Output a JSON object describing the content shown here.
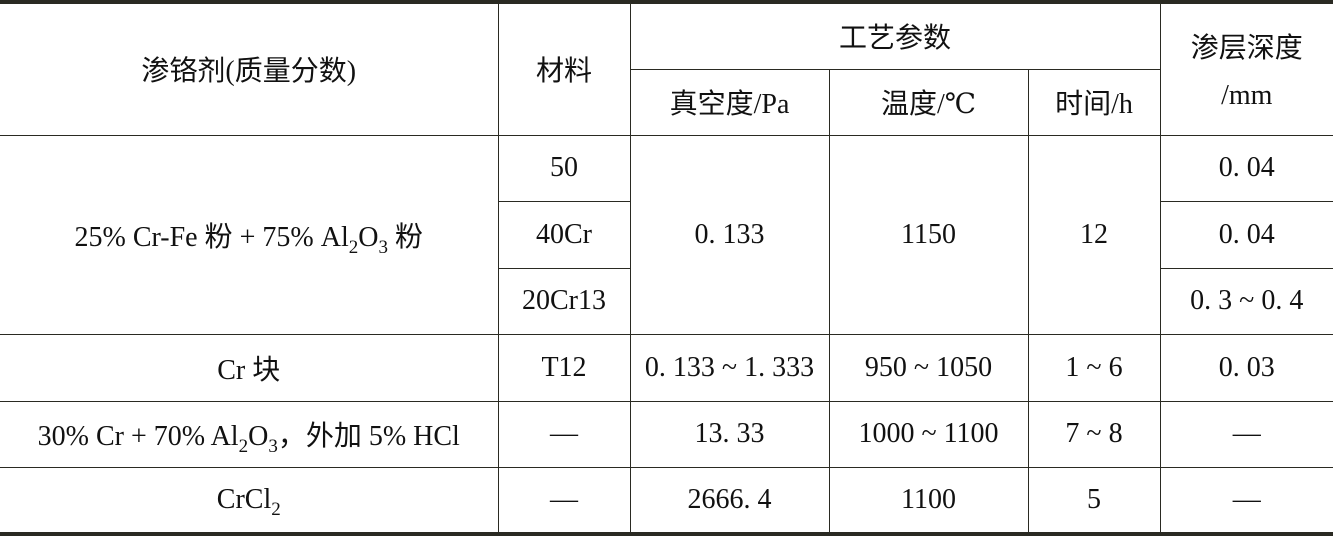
{
  "header": {
    "agent": "渗铬剂(质量分数)",
    "material": "材料",
    "process": "工艺参数",
    "vacuum": "真空度/Pa",
    "temperature": "温度/℃",
    "time": "时间/h",
    "depth_line1": "渗层深度",
    "depth_line2": "/mm"
  },
  "rows": [
    {
      "agent_parts": [
        "25% Cr-Fe 粉 + 75% Al",
        "2",
        "O",
        "3",
        " 粉"
      ],
      "materials": [
        "50",
        "40Cr",
        "20Cr13"
      ],
      "vacuum": "0. 133",
      "temperature": "1150",
      "time": "12",
      "depths": [
        "0. 04",
        "0. 04",
        "0. 3 ~ 0. 4"
      ]
    },
    {
      "agent_parts": [
        "Cr 块"
      ],
      "material": "T12",
      "vacuum": "0. 133 ~ 1. 333",
      "temperature": "950 ~ 1050",
      "time": "1 ~ 6",
      "depth": "0. 03"
    },
    {
      "agent_parts": [
        "30% Cr + 70% Al",
        "2",
        "O",
        "3",
        "，外加 5% HCl"
      ],
      "material": "—",
      "vacuum": "13. 33",
      "temperature": "1000 ~ 1100",
      "time": "7 ~ 8",
      "depth": "—"
    },
    {
      "agent_parts": [
        "CrCl",
        "2"
      ],
      "material": "—",
      "vacuum": "2666. 4",
      "temperature": "1100",
      "time": "5",
      "depth": "—"
    }
  ]
}
